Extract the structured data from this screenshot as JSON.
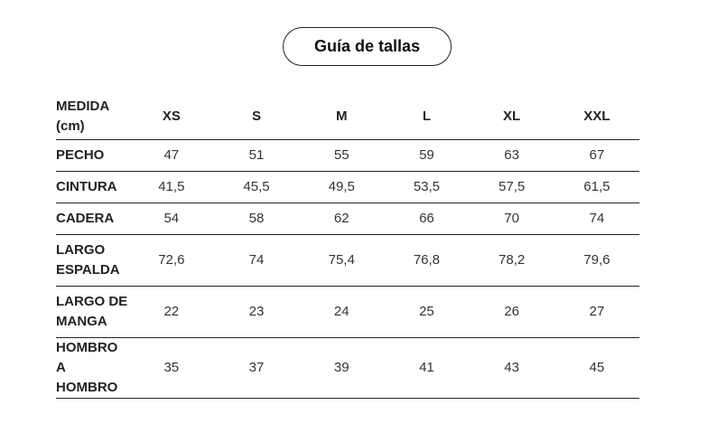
{
  "button": {
    "label": "Guía de tallas"
  },
  "table": {
    "header": [
      "MEDIDA (cm)",
      "XS",
      "S",
      "M",
      "L",
      "XL",
      "XXL"
    ],
    "rows": [
      {
        "label": "PECHO",
        "values": [
          "47",
          "51",
          "55",
          "59",
          "63",
          "67"
        ]
      },
      {
        "label": "CINTURA",
        "values": [
          "41,5",
          "45,5",
          "49,5",
          "53,5",
          "57,5",
          "61,5"
        ]
      },
      {
        "label": "CADERA",
        "values": [
          "54",
          "58",
          "62",
          "66",
          "70",
          "74"
        ]
      },
      {
        "label": "LARGO ESPALDA",
        "values": [
          "72,6",
          "74",
          "75,4",
          "76,8",
          "78,2",
          "79,6"
        ]
      },
      {
        "label": "LARGO DE MANGA",
        "values": [
          "22",
          "23",
          "24",
          "25",
          "26",
          "27"
        ]
      },
      {
        "label": "HOMBRO A HOMBRO",
        "values": [
          "35",
          "37",
          "39",
          "41",
          "43",
          "45"
        ]
      }
    ]
  }
}
